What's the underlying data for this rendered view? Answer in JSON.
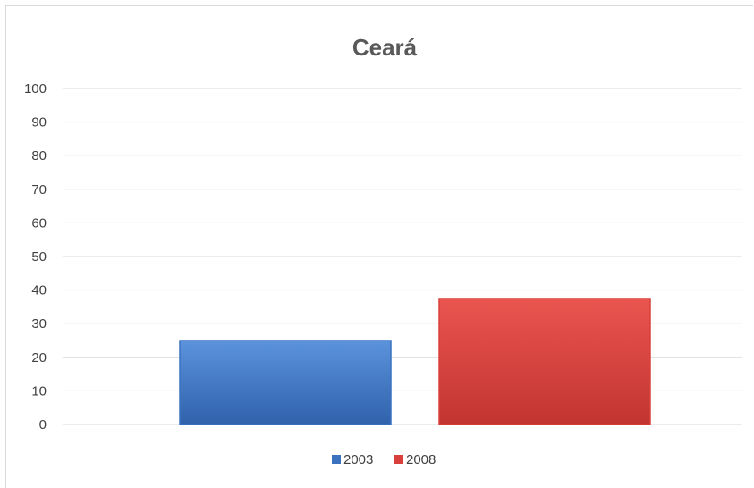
{
  "chart_data": {
    "type": "bar",
    "title": "Ceará",
    "xlabel": "",
    "ylabel": "",
    "categories": [
      ""
    ],
    "series": [
      {
        "name": "2003",
        "values": [
          25
        ],
        "color": "#3a72c0"
      },
      {
        "name": "2008",
        "values": [
          37.5
        ],
        "color": "#d9403b"
      }
    ],
    "ylim": [
      0,
      100
    ],
    "yticks": [
      0,
      10,
      20,
      30,
      40,
      50,
      60,
      70,
      80,
      90,
      100
    ],
    "grid": true,
    "legend_position": "bottom"
  }
}
